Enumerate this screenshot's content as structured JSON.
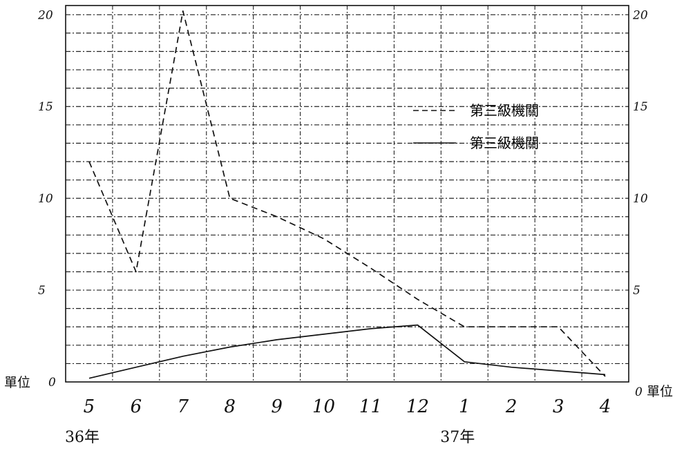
{
  "chart_data": {
    "type": "line",
    "categories": [
      "5",
      "6",
      "7",
      "8",
      "9",
      "10",
      "11",
      "12",
      "1",
      "2",
      "3",
      "4"
    ],
    "series": [
      {
        "name": "第三級機關",
        "style": "dashed",
        "values": [
          12,
          6,
          20.2,
          10,
          9,
          7.8,
          6.2,
          4.5,
          3,
          3,
          3,
          0.3
        ]
      },
      {
        "name": "第三級機關",
        "style": "solid",
        "values": [
          0.2,
          0.8,
          1.4,
          1.9,
          2.3,
          2.6,
          2.9,
          3.1,
          1.1,
          0.8,
          0.6,
          0.4
        ]
      }
    ],
    "y_ticks": [
      "0",
      "5",
      "10",
      "15",
      "20"
    ],
    "y_tick_labels_left": [
      "0",
      "5",
      "10",
      "15",
      "20"
    ],
    "y_tick_labels_right": [
      "0",
      "5",
      "10",
      "15",
      "20"
    ],
    "ylim": [
      0,
      20.5
    ],
    "unit_label_left": "單位",
    "unit_label_right": "單位",
    "year_labels": [
      {
        "text": "36年",
        "category": "5"
      },
      {
        "text": "37年",
        "category": "1"
      }
    ],
    "grid": true,
    "legend_position": "top-right",
    "colors": {
      "line": "#111111",
      "grid": "#222222",
      "background": "#ffffff"
    }
  }
}
